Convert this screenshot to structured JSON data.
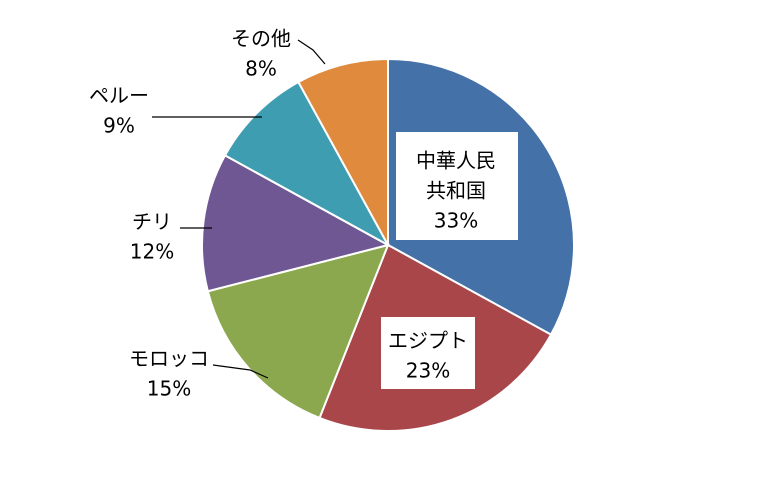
{
  "chart_data": {
    "type": "pie",
    "start_angle_deg": 0,
    "direction": "clockwise",
    "slices": [
      {
        "label_lines": [
          "中華人民",
          "共和国"
        ],
        "percent_label": "33%",
        "value": 33,
        "color": "#4472A8"
      },
      {
        "label_lines": [
          "エジプト"
        ],
        "percent_label": "23%",
        "value": 23,
        "color": "#A9464A"
      },
      {
        "label_lines": [
          "モロッコ"
        ],
        "percent_label": "15%",
        "value": 15,
        "color": "#8BA84F"
      },
      {
        "label_lines": [
          "チリ"
        ],
        "percent_label": "12%",
        "value": 12,
        "color": "#6E5792"
      },
      {
        "label_lines": [
          "ペルー"
        ],
        "percent_label": "9%",
        "value": 9,
        "color": "#3F9DB2"
      },
      {
        "label_lines": [
          "その他"
        ],
        "percent_label": "8%",
        "value": 8,
        "color": "#E08A3E"
      }
    ]
  }
}
